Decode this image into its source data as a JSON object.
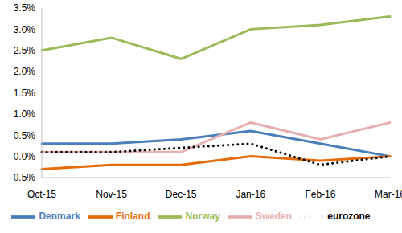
{
  "chart_data": {
    "type": "line",
    "categories": [
      "Oct-15",
      "Nov-15",
      "Dec-15",
      "Jan-16",
      "Feb-16",
      "Mar-16"
    ],
    "series": [
      {
        "name": "Denmark",
        "color": "#4a7ebb",
        "line_style": "solid",
        "marker": "none",
        "values": [
          0.3,
          0.3,
          0.4,
          0.6,
          0.3,
          0.0
        ]
      },
      {
        "name": "Finland",
        "color": "#e46c0a",
        "line_style": "solid",
        "marker": "none",
        "values": [
          -0.3,
          -0.2,
          -0.2,
          0.0,
          -0.1,
          0.0
        ]
      },
      {
        "name": "Norway",
        "color": "#9bbb59",
        "line_style": "solid",
        "marker": "none",
        "values": [
          2.5,
          2.8,
          2.3,
          3.0,
          3.1,
          3.3
        ]
      },
      {
        "name": "Sweden",
        "color": "#e6b0b0",
        "line_style": "solid",
        "marker": "none",
        "values": [
          0.1,
          0.1,
          0.1,
          0.8,
          0.4,
          0.8
        ]
      },
      {
        "name": "eurozone",
        "color": "#000000",
        "line_style": "dotted",
        "marker": "none",
        "values": [
          0.1,
          0.1,
          0.2,
          0.3,
          -0.2,
          0.0
        ]
      }
    ],
    "ylim": [
      -0.5,
      3.5
    ],
    "yticks": [
      {
        "value": -0.5,
        "label": "-0.5%"
      },
      {
        "value": 0,
        "label": "0.0%"
      },
      {
        "value": 0.5,
        "label": "0.5%"
      },
      {
        "value": 1,
        "label": "1.0%"
      },
      {
        "value": 1.5,
        "label": "1.5%"
      },
      {
        "value": 2,
        "label": "2.0%"
      },
      {
        "value": 2.5,
        "label": "2.5%"
      },
      {
        "value": 3,
        "label": "3.0%"
      },
      {
        "value": 3.5,
        "label": "3.5%"
      }
    ],
    "grid": false,
    "legend": "bottom"
  }
}
